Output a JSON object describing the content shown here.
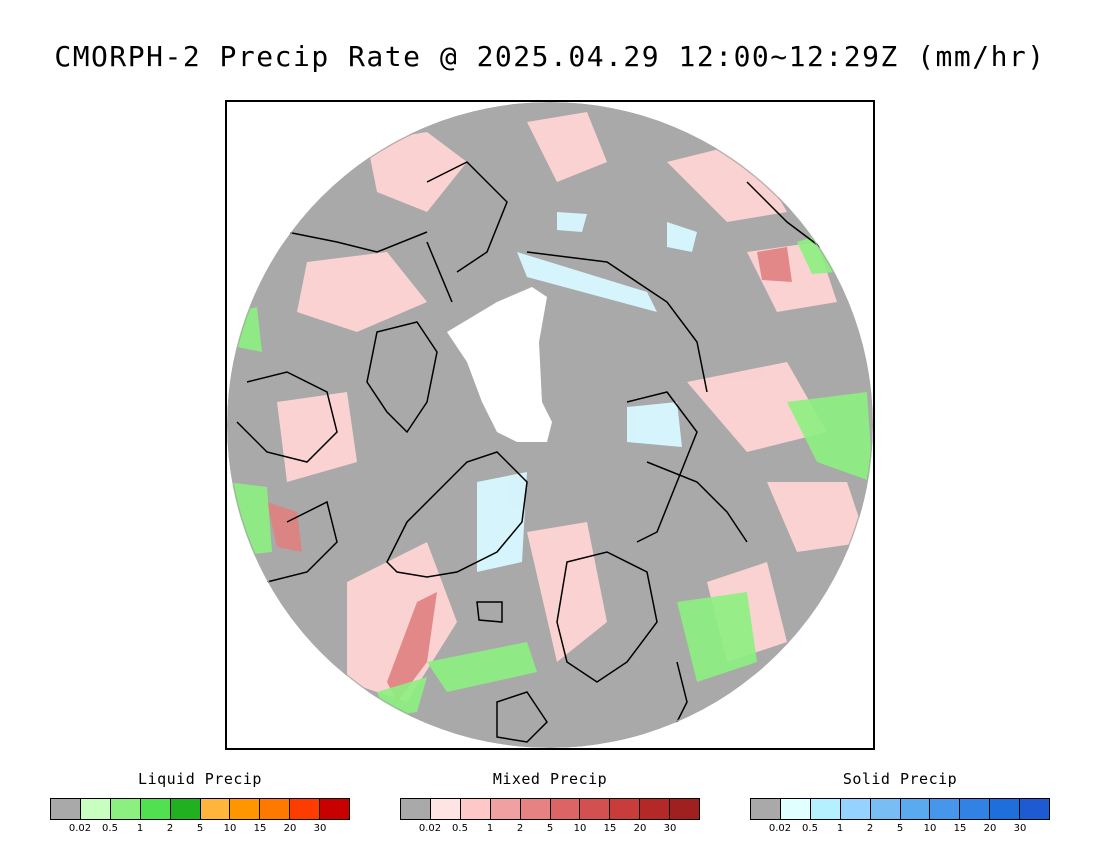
{
  "title": "CMORPH-2 Precip Rate @ 2025.04.29 12:00~12:29Z (mm/hr)",
  "map": {
    "projection": "north-polar-stereographic",
    "background_color": "#a9a9a9",
    "missing_color": "#ffffff",
    "coastline_color": "#000000",
    "icons": [
      "polar-disc",
      "sea-ice-missing-region",
      "coastline"
    ]
  },
  "legends": [
    {
      "id": "liquid",
      "title": "Liquid Precip",
      "colors": [
        "#a9a9a9",
        "#c8ffc0",
        "#8cf080",
        "#50e050",
        "#20b020",
        "#ffb43c",
        "#ff9600",
        "#ff7800",
        "#ff3c00",
        "#c80000"
      ],
      "ticks": [
        "0.02",
        "0.5",
        "1",
        "2",
        "5",
        "10",
        "15",
        "20",
        "30"
      ]
    },
    {
      "id": "mixed",
      "title": "Mixed Precip",
      "colors": [
        "#a9a9a9",
        "#ffe4e4",
        "#ffc8c8",
        "#f0a0a0",
        "#e68282",
        "#dc6464",
        "#d25050",
        "#c83c3c",
        "#b42828",
        "#a02020"
      ],
      "ticks": [
        "0.02",
        "0.5",
        "1",
        "2",
        "5",
        "10",
        "15",
        "20",
        "30"
      ]
    },
    {
      "id": "solid",
      "title": "Solid Precip",
      "colors": [
        "#a9a9a9",
        "#e0ffff",
        "#b4f0ff",
        "#96d2ff",
        "#78bef5",
        "#5aaaf0",
        "#4696eb",
        "#3282e6",
        "#1e6edc",
        "#1e5ad2"
      ],
      "ticks": [
        "0.02",
        "0.5",
        "1",
        "2",
        "5",
        "10",
        "15",
        "20",
        "30"
      ]
    }
  ]
}
